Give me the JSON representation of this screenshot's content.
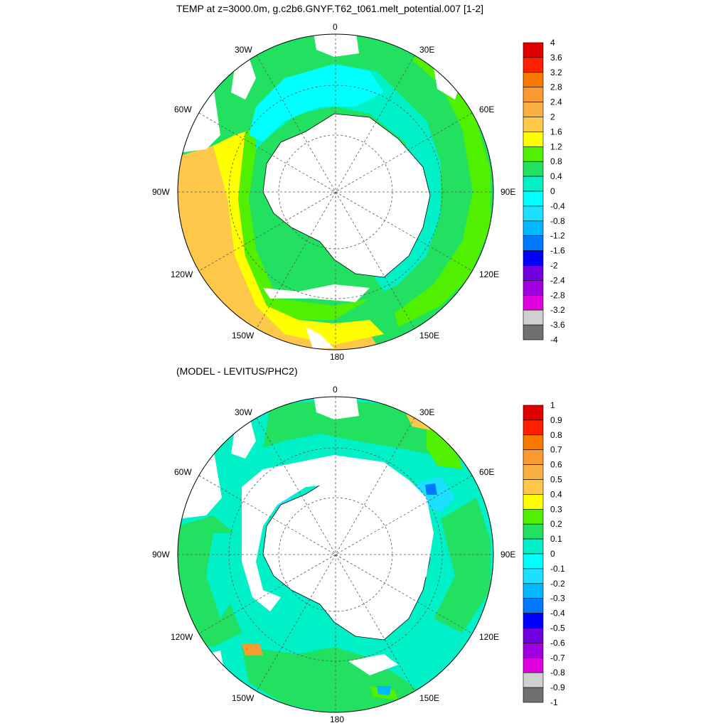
{
  "panels": [
    {
      "id": "p1",
      "title": "TEMP at z=3000.0m, g.c2b6.GNYF.T62_t061.melt_potential.007 [1-2]",
      "lon_labels": [
        "0",
        "30E",
        "60E",
        "90E",
        "120E",
        "150E",
        "180",
        "150W",
        "120W",
        "90W",
        "60W",
        "30W"
      ],
      "colorbar": {
        "labels": [
          "4",
          "3.6",
          "3.2",
          "2.8",
          "2.4",
          "2",
          "1.6",
          "1.2",
          "0.8",
          "0.4",
          "0",
          "-0.4",
          "-0.8",
          "-1.2",
          "-1.6",
          "-2",
          "-2.4",
          "-2.8",
          "-3.2",
          "-3.6",
          "-4"
        ],
        "colors": [
          "#c40000",
          "#e00000",
          "#ff2000",
          "#f87800",
          "#f89a30",
          "#f8b040",
          "#fdc84a",
          "#ffff00",
          "#50f000",
          "#22e060",
          "#00f0c8",
          "#00ffff",
          "#1ce0ff",
          "#00b8ff",
          "#0078ff",
          "#0000ff",
          "#7000e0",
          "#a000e0",
          "#e000e0",
          "#d0d0d0",
          "#707070"
        ]
      }
    },
    {
      "id": "p2",
      "title": "(MODEL - LEVITUS/PHC2)",
      "lon_labels": [
        "0",
        "30E",
        "60E",
        "90E",
        "120E",
        "150E",
        "180",
        "150W",
        "120W",
        "90W",
        "60W",
        "30W"
      ],
      "colorbar": {
        "labels": [
          "1",
          "0.9",
          "0.8",
          "0.7",
          "0.6",
          "0.5",
          "0.4",
          "0.3",
          "0.2",
          "0.1",
          "0",
          "-0.1",
          "-0.2",
          "-0.3",
          "-0.4",
          "-0.5",
          "-0.6",
          "-0.7",
          "-0.8",
          "-0.9",
          "-1"
        ],
        "colors": [
          "#c40000",
          "#e00000",
          "#ff2000",
          "#f87800",
          "#f89a30",
          "#f8b040",
          "#fdc84a",
          "#ffff00",
          "#50f000",
          "#22e060",
          "#00f0c8",
          "#00ffff",
          "#1ce0ff",
          "#00b8ff",
          "#0078ff",
          "#0000ff",
          "#7000e0",
          "#a000e0",
          "#e000e0",
          "#d0d0d0",
          "#707070"
        ]
      }
    }
  ]
}
